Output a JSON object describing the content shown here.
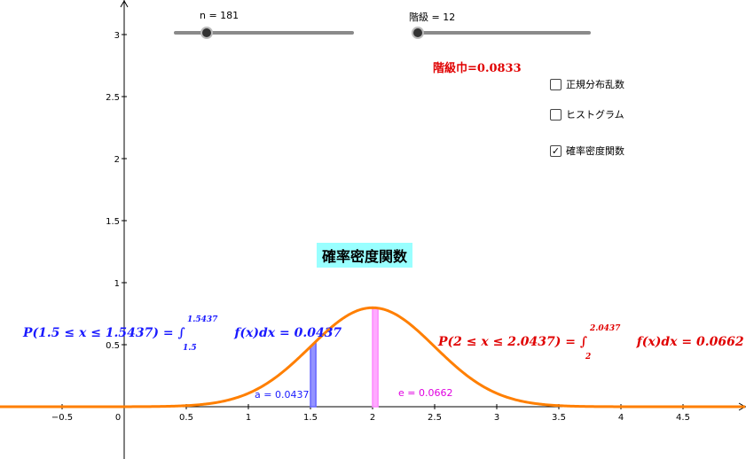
{
  "sliders": {
    "n": {
      "label": "n = 181"
    },
    "class_count": {
      "label": "階級 = 12"
    }
  },
  "class_width_text": "階級巾=0.0833",
  "checkboxes": [
    {
      "label": "正規分布乱数",
      "checked": false
    },
    {
      "label": "ヒストグラム",
      "checked": false
    },
    {
      "label": "確率密度関数",
      "checked": true
    }
  ],
  "title": "確率密度関数",
  "left_formula": {
    "lhs": "P(1.5 ≤ x ≤ 1.5437) = ∫",
    "upper": "1.5437",
    "lower": "1.5",
    "rhs": "f(x)dx = 0.0437",
    "color": "#1a1aff"
  },
  "right_formula": {
    "lhs": "P(2 ≤ x ≤ 2.0437) = ∫",
    "upper": "2.0437",
    "lower": "2",
    "rhs": "f(x)dx = 0.0662",
    "color": "#e00000"
  },
  "area_labels": {
    "a": "a = 0.0437",
    "e": "e = 0.0662"
  },
  "colors": {
    "curve": "#ff7f00",
    "area_a": "#6666ff",
    "area_e": "#ff88ff"
  },
  "axes": {
    "x_ticks": [
      "-0.5",
      "0",
      "0.5",
      "1",
      "1.5",
      "2",
      "2.5",
      "3",
      "3.5",
      "4",
      "4.5"
    ],
    "y_ticks": [
      "0.5",
      "1",
      "1.5",
      "2",
      "2.5",
      "3"
    ]
  }
}
